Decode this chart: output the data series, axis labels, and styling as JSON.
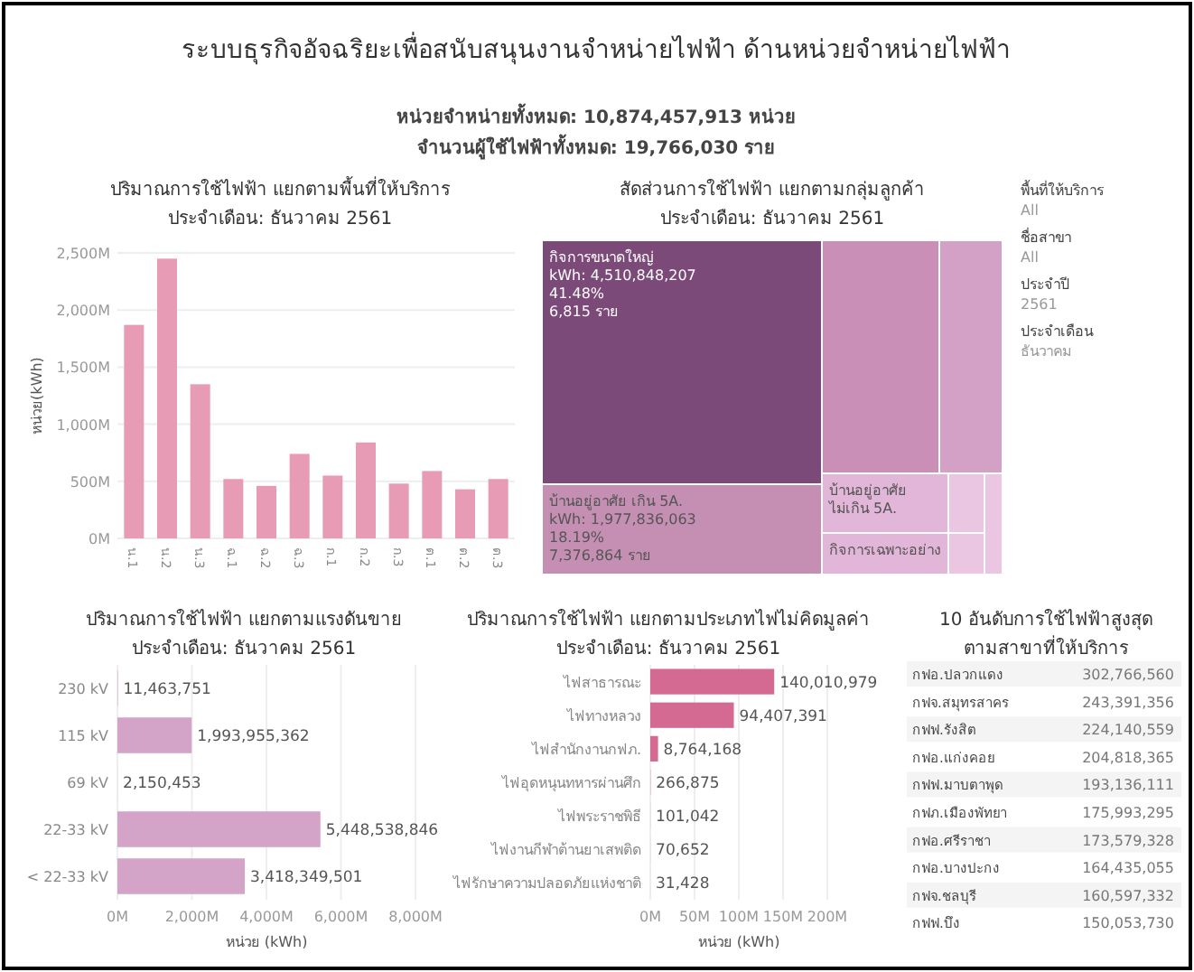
{
  "chart_data": [
    {
      "type": "other",
      "title": "ระบบธุรกิจอัจฉริยะเพื่อสนับสนุนงานจำหน่ายไฟฟ้า ด้านหน่วยจำหน่ายไฟฟ้า",
      "annotations": [
        "หน่วยจำหน่ายทั้งหมด: 10,874,457,913 หน่วย",
        "จำนวนผู้ใช้ไฟฟ้าทั้งหมด: 19,766,030 ราย"
      ]
    },
    {
      "type": "bar",
      "title": "ปริมาณการใช้ไฟฟ้า แยกตามพื้นที่ให้บริการ",
      "subtitle": "ประจำเดือน: ธันวาคม 2561",
      "ylabel": "หน่วย(kWh)",
      "categories": [
        "น.1",
        "น.2",
        "น.3",
        "ฉ.1",
        "ฉ.2",
        "ฉ.3",
        "ก.1",
        "ก.2",
        "ก.3",
        "ต.1",
        "ต.2",
        "ต.3"
      ],
      "values": [
        1870000000,
        2450000000,
        1350000000,
        520000000,
        460000000,
        740000000,
        550000000,
        840000000,
        480000000,
        590000000,
        430000000,
        520000000
      ],
      "color": "#e89bb5",
      "ylim": [
        0,
        2500000000
      ],
      "yticks": [
        {
          "value": 0,
          "label": "0M"
        },
        {
          "value": 500000000,
          "label": "500M"
        },
        {
          "value": 1000000000,
          "label": "1,000M"
        },
        {
          "value": 1500000000,
          "label": "1,500M"
        },
        {
          "value": 2000000000,
          "label": "2,000M"
        },
        {
          "value": 2500000000,
          "label": "2,500M"
        }
      ],
      "grid": "y"
    },
    {
      "type": "other",
      "title": "สัดส่วนการใช้ไฟฟ้า แยกตามกลุ่มลูกค้า",
      "subtitle": "ประจำเดือน: ธันวาคม 2561",
      "categories": [
        "กิจการขนาดใหญ่",
        "บ้านอยู่อาศัย เกิน 5A.",
        "บ้านอยู่อาศัย ไม่เกิน 5A.",
        "กิจการเฉพาะอย่าง",
        null,
        null,
        null,
        null,
        null
      ],
      "value_labels": [
        "kWh: 4,510,848,207\n41.48%\n6,815 ราย",
        "kWh: 1,977,836,063\n18.19%\n7,376,864 ราย",
        null,
        null,
        null,
        null,
        null,
        null,
        null
      ],
      "colors": [
        "#7b4a78",
        "#c48fb3",
        "#e2b6d8",
        "#e2b6d8",
        "#c98fb6",
        "#d3a0c6",
        "#eac6e2",
        "#eac6e2",
        "#eac6e2"
      ]
    },
    {
      "type": "other",
      "annotations": [
        "พื้นที่ให้บริการ",
        "All",
        "ชื่อสาขา",
        "All",
        "ประจำปี",
        "2561",
        "ประจำเดือน",
        "ธันวาคม"
      ]
    },
    {
      "type": "bar",
      "orientation": "horizontal",
      "title": "ปริมาณการใช้ไฟฟ้า แยกตามแรงดันขาย",
      "subtitle": "ประจำเดือน: ธันวาคม 2561",
      "xlabel": "หน่วย (kWh)",
      "categories": [
        "230 kV",
        "115 kV",
        "69 kV",
        "22-33 kV",
        "< 22-33 kV"
      ],
      "values": [
        11463751,
        1993955362,
        2150453,
        5448538846,
        3418349501
      ],
      "value_labels": [
        "11,463,751",
        "1,993,955,362",
        "2,150,453",
        "5,448,538,846",
        "3,418,349,501"
      ],
      "color": "#d4a3c8",
      "xlim": [
        0,
        8000000000
      ],
      "xticks": [
        {
          "value": 0,
          "label": "0M"
        },
        {
          "value": 2000000000,
          "label": "2,000M"
        },
        {
          "value": 4000000000,
          "label": "4,000M"
        },
        {
          "value": 6000000000,
          "label": "6,000M"
        },
        {
          "value": 8000000000,
          "label": "8,000M"
        }
      ],
      "grid": "x"
    },
    {
      "type": "bar",
      "orientation": "horizontal",
      "title": "ปริมาณการใช้ไฟฟ้า แยกตามประเภทไฟไม่คิดมูลค่า",
      "subtitle": "ประจำเดือน: ธันวาคม 2561",
      "xlabel": "หน่วย (kWh)",
      "categories": [
        "ไฟสาธารณะ",
        "ไฟทางหลวง",
        "ไฟสำนักงานกฟภ.",
        "ไฟอุดหนุนทหารผ่านศึก",
        "ไฟพระราชพิธี",
        "ไฟงานกีฬาต้านยาเสพติด",
        "ไฟรักษาความปลอดภัยแห่งชาติ"
      ],
      "values": [
        140010979,
        94407391,
        8764168,
        266875,
        101042,
        70652,
        31428
      ],
      "value_labels": [
        "140,010,979",
        "94,407,391",
        "8,764,168",
        "266,875",
        "101,042",
        "70,652",
        "31,428"
      ],
      "color": "#d46a92",
      "xlim": [
        0,
        200000000
      ],
      "xticks": [
        {
          "value": 0,
          "label": "0M"
        },
        {
          "value": 50000000,
          "label": "50M"
        },
        {
          "value": 100000000,
          "label": "100M"
        },
        {
          "value": 150000000,
          "label": "150M"
        },
        {
          "value": 200000000,
          "label": "200M"
        }
      ],
      "grid": "x"
    },
    {
      "type": "other",
      "title": "10 อันดับการใช้ไฟฟ้าสูงสุด",
      "subtitle": "ตามสาขาที่ให้บริการ",
      "categories": [
        "กฟอ.ปลวกแดง",
        "กฟจ.สมุทรสาคร",
        "กฟฟ.รังสิต",
        "กฟอ.แก่งคอย",
        "กฟฟ.มาบตาพุด",
        "กฟภ.เมืองพัทยา",
        "กฟอ.ศรีราชา",
        "กฟอ.บางปะกง",
        "กฟจ.ชลบุรี",
        "กฟฟ.บึง"
      ],
      "value_labels": [
        "302,766,560",
        "243,391,356",
        "224,140,559",
        "204,818,365",
        "193,136,111",
        "175,993,295",
        "173,579,328",
        "164,435,055",
        "160,597,332",
        "150,053,730"
      ]
    }
  ]
}
